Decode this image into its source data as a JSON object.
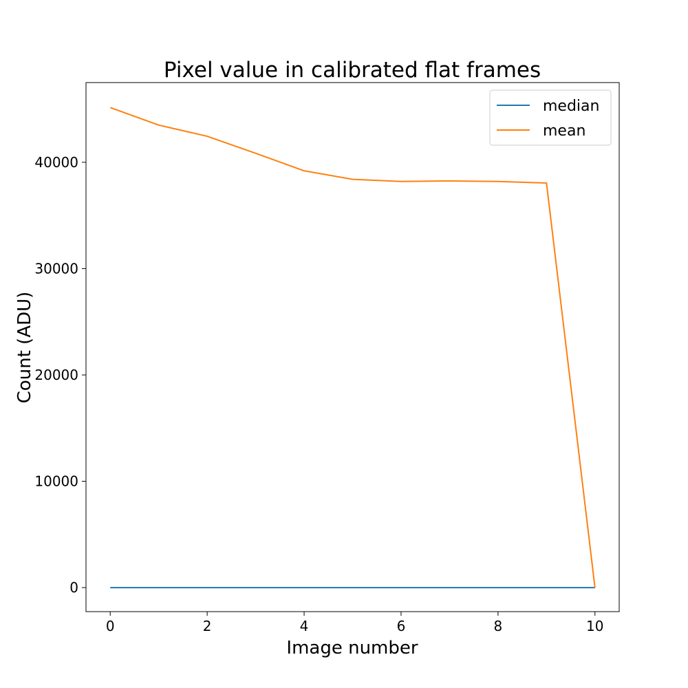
{
  "chart_data": {
    "type": "line",
    "title": "Pixel value in calibrated flat frames",
    "xlabel": "Image number",
    "ylabel": "Count (ADU)",
    "xlim": [
      -0.5,
      10.5
    ],
    "ylim": [
      -2260,
      47500
    ],
    "xticks": [
      0,
      2,
      4,
      6,
      8,
      10
    ],
    "yticks": [
      0,
      10000,
      20000,
      30000,
      40000
    ],
    "grid": false,
    "legend_position": "top-right",
    "x": [
      0,
      1,
      2,
      3,
      4,
      5,
      6,
      7,
      8,
      9,
      10
    ],
    "series": [
      {
        "name": "median",
        "color": "#1f77b4",
        "values": [
          0,
          0,
          0,
          0,
          0,
          0,
          0,
          0,
          0,
          0,
          0
        ]
      },
      {
        "name": "mean",
        "color": "#ff7f0e",
        "values": [
          45150,
          43500,
          42450,
          40850,
          39200,
          38400,
          38200,
          38250,
          38200,
          38050,
          0
        ]
      }
    ]
  }
}
